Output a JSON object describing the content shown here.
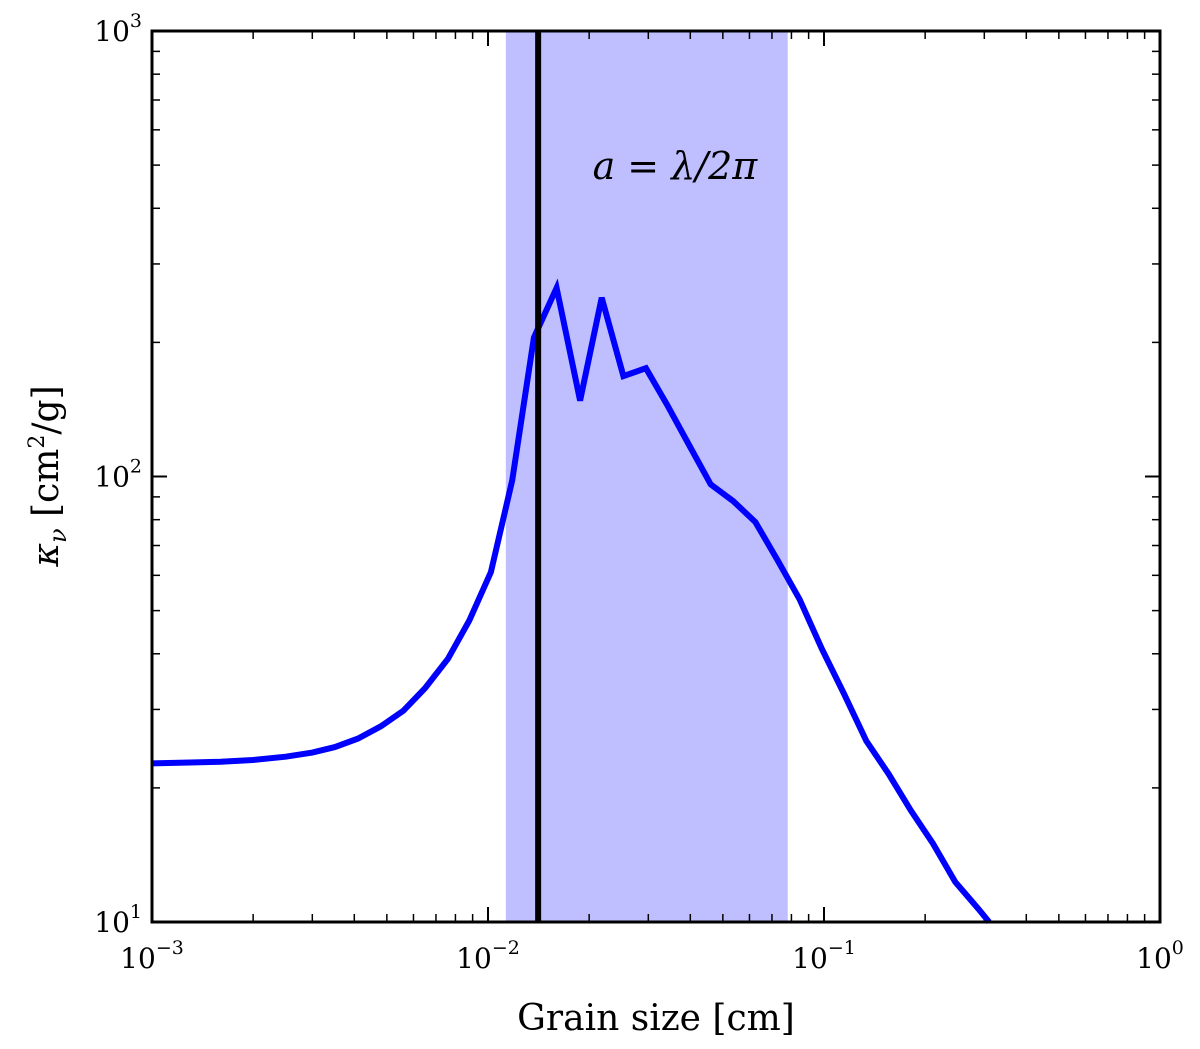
{
  "chart_data": {
    "type": "line",
    "xscale": "log",
    "yscale": "log",
    "xlim": [
      0.001,
      1
    ],
    "ylim": [
      10,
      1000
    ],
    "xlabel": "Grain size [cm]",
    "ylabel": "κ_ν [cm²/g]",
    "ylabel_main": "κ",
    "ylabel_sub": "ν",
    "ylabel_unit_pre": " [cm",
    "ylabel_unit_sup": "2",
    "ylabel_unit_post": "/g]",
    "x_ticks": [
      {
        "value": 0.001,
        "base": "10",
        "exp": "−3"
      },
      {
        "value": 0.01,
        "base": "10",
        "exp": "−2"
      },
      {
        "value": 0.1,
        "base": "10",
        "exp": "−1"
      },
      {
        "value": 1,
        "base": "10",
        "exp": "0"
      }
    ],
    "y_ticks": [
      {
        "value": 10,
        "base": "10",
        "exp": "1"
      },
      {
        "value": 100,
        "base": "10",
        "exp": "2"
      },
      {
        "value": 1000,
        "base": "10",
        "exp": "3"
      }
    ],
    "shaded_region": {
      "x_start": 0.0113,
      "x_end": 0.078,
      "color": "#bfbfff"
    },
    "vertical_line": {
      "x": 0.0141,
      "color": "#000000"
    },
    "annotation": {
      "text": "a = λ/2π",
      "x": 0.036,
      "y": 500
    },
    "series": [
      {
        "name": "kappa",
        "color": "#0000ff",
        "x": [
          0.001,
          0.0013,
          0.0016,
          0.002,
          0.0025,
          0.003,
          0.0035,
          0.0041,
          0.0048,
          0.0056,
          0.0065,
          0.0076,
          0.0088,
          0.0102,
          0.0118,
          0.0137,
          0.016,
          0.0188,
          0.0218,
          0.0253,
          0.0295,
          0.0341,
          0.0396,
          0.046,
          0.0537,
          0.0625,
          0.0726,
          0.0846,
          0.0986,
          0.1148,
          0.1336,
          0.1557,
          0.1813,
          0.211,
          0.2457,
          0.288,
          0.31
        ],
        "y": [
          22.7,
          22.8,
          22.9,
          23.1,
          23.5,
          24.0,
          24.7,
          25.8,
          27.5,
          29.8,
          33.5,
          39.0,
          47.5,
          61.0,
          98.0,
          205.0,
          265.0,
          148.0,
          252.0,
          168.0,
          175.0,
          145.0,
          118.0,
          96.0,
          88.0,
          79.0,
          65.0,
          53.0,
          41.0,
          32.5,
          25.5,
          21.5,
          17.8,
          15.0,
          12.3,
          10.7,
          10.0
        ]
      }
    ]
  }
}
